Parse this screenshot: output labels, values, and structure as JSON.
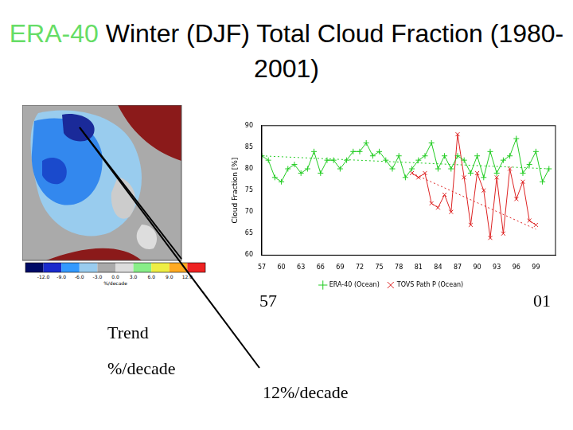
{
  "slide": {
    "title_parts": [
      "ERA-40",
      "Winter (DJF) Total Cloud Fraction (1980-2001)"
    ]
  },
  "map": {
    "colorbar": {
      "range": [
        -15,
        15
      ],
      "ticks": [
        {
          "value": -12,
          "label": "-12.0"
        },
        {
          "value": -9,
          "label": "-9.0"
        },
        {
          "value": -6,
          "label": "-6.0"
        },
        {
          "value": -3,
          "label": "-3.0"
        },
        {
          "value": 0,
          "label": "0.0"
        },
        {
          "value": 3,
          "label": "3.0"
        },
        {
          "value": 6,
          "label": "6.0"
        },
        {
          "value": 9,
          "label": "9.0"
        },
        {
          "value": 12,
          "label": "12.0"
        }
      ],
      "label": "%/decade"
    }
  },
  "annotations": [
    "57",
    "01",
    "Trend",
    "%/decade",
    "12%/decade"
  ],
  "chart_data": {
    "type": "line",
    "y_label": "Cloud Fraction [%]",
    "xlim": [
      1957,
      2002
    ],
    "xticks": [
      {
        "value": 1957,
        "label": "57"
      },
      {
        "value": 1960,
        "label": "60"
      },
      {
        "value": 1963,
        "label": "63"
      },
      {
        "value": 1966,
        "label": "66"
      },
      {
        "value": 1969,
        "label": "69"
      },
      {
        "value": 1972,
        "label": "72"
      },
      {
        "value": 1975,
        "label": "75"
      },
      {
        "value": 1978,
        "label": "78"
      },
      {
        "value": 1981,
        "label": "81"
      },
      {
        "value": 1984,
        "label": "84"
      },
      {
        "value": 1987,
        "label": "87"
      },
      {
        "value": 1990,
        "label": "90"
      },
      {
        "value": 1993,
        "label": "93"
      },
      {
        "value": 1996,
        "label": "96"
      },
      {
        "value": 1999,
        "label": "99"
      }
    ],
    "ylim": [
      60,
      90
    ],
    "yticks": [
      60,
      65,
      70,
      75,
      80,
      85,
      90
    ],
    "grid": false,
    "legend": "bottom",
    "series": [
      {
        "name": "ERA-40 (Ocean)",
        "color": "#22cc22",
        "marker": "cross",
        "line_style": "solid",
        "x": [
          1957,
          1958,
          1959,
          1960,
          1961,
          1962,
          1963,
          1964,
          1965,
          1966,
          1967,
          1968,
          1969,
          1970,
          1971,
          1972,
          1973,
          1974,
          1975,
          1976,
          1977,
          1978,
          1979,
          1980,
          1981,
          1982,
          1983,
          1984,
          1985,
          1986,
          1987,
          1988,
          1989,
          1990,
          1991,
          1992,
          1993,
          1994,
          1995,
          1996,
          1997,
          1998,
          1999,
          2000,
          2001
        ],
        "values": [
          83,
          82,
          78,
          77,
          80,
          81,
          79,
          80,
          84,
          79,
          82,
          82,
          80,
          82,
          84,
          84,
          86,
          83,
          84,
          82,
          80,
          83,
          78,
          80,
          82,
          83,
          86,
          80,
          83,
          80,
          83,
          82,
          79,
          83,
          78,
          84,
          79,
          82,
          83,
          87,
          79,
          81,
          84,
          77,
          80
        ]
      },
      {
        "name": "TOVS Path P (Ocean)",
        "color": "#dd2222",
        "marker": "x",
        "line_style": "solid",
        "x": [
          1980,
          1981,
          1982,
          1983,
          1984,
          1985,
          1986,
          1987,
          1988,
          1989,
          1990,
          1991,
          1992,
          1993,
          1994,
          1995,
          1996,
          1997,
          1998,
          1999
        ],
        "values": [
          79,
          78,
          79,
          72,
          71,
          74,
          70,
          88,
          78,
          67,
          79,
          75,
          64,
          78,
          65,
          80,
          73,
          77,
          68,
          67
        ]
      }
    ],
    "trend_lines": [
      {
        "color": "#22cc22",
        "line_style": "dotted",
        "x": [
          1957,
          2001
        ],
        "values": [
          83,
          80
        ]
      },
      {
        "color": "#dd2222",
        "line_style": "dotted",
        "x": [
          1980,
          1999
        ],
        "values": [
          79,
          66
        ]
      }
    ]
  }
}
